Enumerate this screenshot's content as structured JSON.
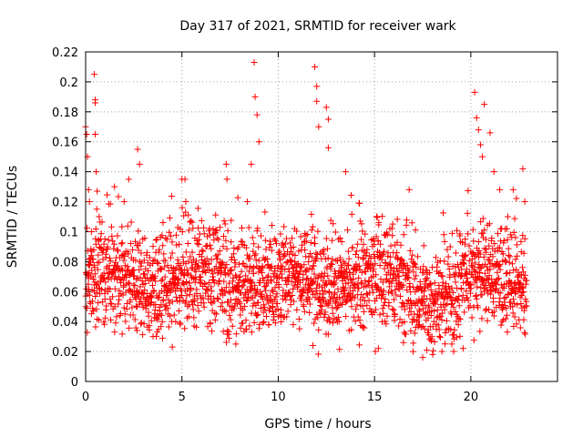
{
  "chart_data": {
    "type": "scatter",
    "title": "Day 317 of 2021, SRMTID for receiver wark",
    "xlabel": "GPS time / hours",
    "ylabel": "SRMTID / TECUs",
    "xlim": [
      0,
      24.5
    ],
    "ylim": [
      0,
      0.22
    ],
    "xticks": [
      0,
      5,
      10,
      15,
      20
    ],
    "xtick_labels": [
      "0",
      "5",
      "10",
      "15",
      "20"
    ],
    "yticks": [
      0,
      0.02,
      0.04,
      0.06,
      0.08,
      0.1,
      0.12,
      0.14,
      0.16,
      0.18,
      0.2,
      0.22
    ],
    "ytick_labels": [
      "0",
      "0.02",
      "0.04",
      "0.06",
      "0.08",
      "0.1",
      "0.12",
      "0.14",
      "0.16",
      "0.18",
      "0.2",
      "0.22"
    ],
    "grid": true,
    "marker": "+",
    "marker_color": "#ff0000",
    "series": [
      {
        "name": "SRMTID",
        "x_range": [
          0,
          22.9
        ],
        "n_points": 2200,
        "note": "dense noisy scatter; baseline about 0.04-0.10 TECU with spikes near 0.3 h, 8.8 h, 12 h, 12.5 h, 20.3 h",
        "values": [
          [
            0.0,
            0.17
          ],
          [
            0.05,
            0.165
          ],
          [
            0.1,
            0.15
          ],
          [
            0.15,
            0.128
          ],
          [
            0.2,
            0.12
          ],
          [
            0.3,
            0.1
          ],
          [
            0.45,
            0.205
          ],
          [
            0.5,
            0.188
          ],
          [
            0.5,
            0.186
          ],
          [
            0.5,
            0.165
          ],
          [
            0.55,
            0.14
          ],
          [
            0.6,
            0.127
          ],
          [
            0.7,
            0.11
          ],
          [
            1.0,
            0.095
          ],
          [
            1.5,
            0.13
          ],
          [
            2.0,
            0.12
          ],
          [
            2.7,
            0.155
          ],
          [
            2.8,
            0.145
          ],
          [
            3.5,
            0.03
          ],
          [
            4.5,
            0.023
          ],
          [
            5.0,
            0.135
          ],
          [
            5.2,
            0.12
          ],
          [
            7.3,
            0.145
          ],
          [
            7.8,
            0.025
          ],
          [
            8.4,
            0.12
          ],
          [
            8.6,
            0.145
          ],
          [
            8.75,
            0.213
          ],
          [
            8.8,
            0.19
          ],
          [
            8.9,
            0.178
          ],
          [
            9.0,
            0.16
          ],
          [
            9.5,
            0.038
          ],
          [
            11.8,
            0.024
          ],
          [
            11.9,
            0.21
          ],
          [
            12.0,
            0.197
          ],
          [
            12.0,
            0.187
          ],
          [
            12.1,
            0.17
          ],
          [
            12.5,
            0.183
          ],
          [
            12.6,
            0.175
          ],
          [
            12.6,
            0.156
          ],
          [
            13.5,
            0.14
          ],
          [
            14.4,
            0.036
          ],
          [
            15.2,
            0.022
          ],
          [
            16.5,
            0.026
          ],
          [
            16.8,
            0.128
          ],
          [
            17.0,
            0.02
          ],
          [
            17.5,
            0.016
          ],
          [
            18.5,
            0.02
          ],
          [
            19.6,
            0.022
          ],
          [
            20.2,
            0.193
          ],
          [
            20.3,
            0.176
          ],
          [
            20.4,
            0.168
          ],
          [
            20.5,
            0.158
          ],
          [
            20.6,
            0.15
          ],
          [
            20.7,
            0.185
          ],
          [
            21.0,
            0.166
          ],
          [
            21.2,
            0.14
          ],
          [
            21.5,
            0.128
          ],
          [
            22.2,
            0.128
          ],
          [
            22.7,
            0.142
          ],
          [
            22.8,
            0.12
          ]
        ]
      }
    ]
  }
}
